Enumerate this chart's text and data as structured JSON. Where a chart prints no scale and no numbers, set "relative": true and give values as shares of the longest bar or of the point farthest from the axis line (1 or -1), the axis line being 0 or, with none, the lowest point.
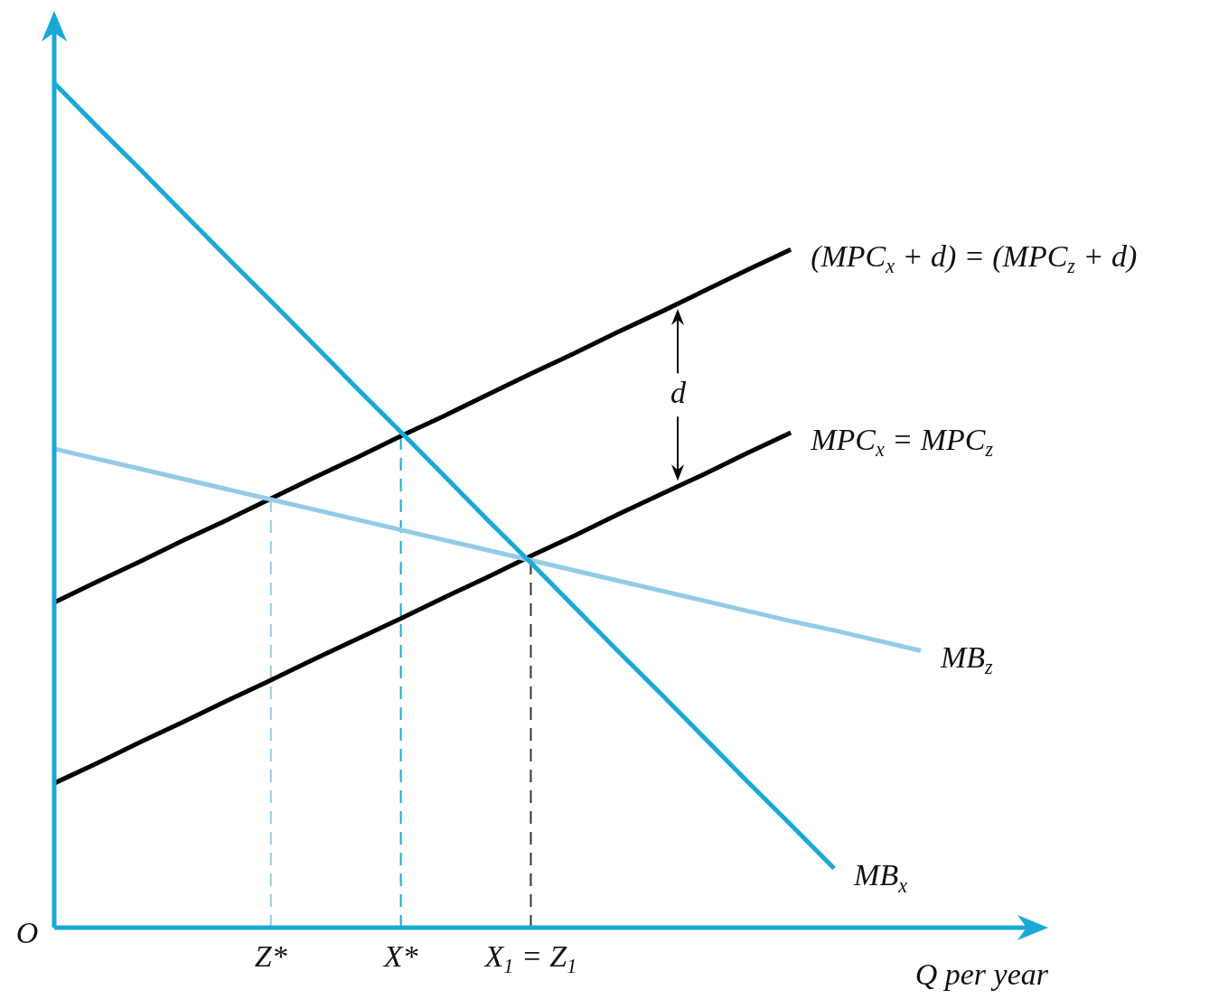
{
  "chart_data": {
    "type": "line",
    "relative": true,
    "xlabel": "Q per year",
    "categories": [
      null,
      null,
      null,
      null,
      null,
      "Z*",
      null,
      null,
      "X*",
      null,
      null,
      "X$_{1}$ = Z$_{1}$",
      null,
      null,
      null,
      null,
      null,
      null,
      null,
      null,
      null
    ],
    "series": [
      {
        "name": "MB$_{x}$",
        "color": "#1aa9d6",
        "values": [
          1,
          0.948,
          0.897,
          0.845,
          0.793,
          0.742,
          0.69,
          0.638,
          0.587,
          0.535,
          0.483,
          0.432,
          0.38,
          0.328,
          0.277,
          0.225,
          0.173,
          0.122,
          0.07,
          null,
          null
        ]
      },
      {
        "name": "MB$_{z}$",
        "color": "#93cbe8",
        "values": [
          0.567,
          0.555,
          0.543,
          0.531,
          0.519,
          0.507,
          0.495,
          0.483,
          0.471,
          0.459,
          0.447,
          0.435,
          0.423,
          0.411,
          0.399,
          0.387,
          0.375,
          0.363,
          0.352,
          0.34,
          0.328
        ]
      },
      {
        "name": "(MPC$_{x}$ + d) = (MPC$_{z}$ + d)",
        "color": "#000000",
        "values": [
          0.385,
          0.41,
          0.434,
          0.459,
          0.483,
          0.508,
          0.533,
          0.557,
          0.582,
          0.606,
          0.631,
          0.656,
          0.68,
          0.705,
          0.729,
          0.754,
          0.779,
          0.803,
          null,
          null,
          null
        ]
      },
      {
        "name": "MPC$_{x}$ = MPC$_{z}$",
        "color": "#000000",
        "values": [
          0.171,
          0.195,
          0.22,
          0.244,
          0.269,
          0.293,
          0.318,
          0.342,
          0.366,
          0.391,
          0.415,
          0.44,
          0.464,
          0.489,
          0.513,
          0.537,
          0.562,
          0.586,
          null,
          null,
          null
        ]
      }
    ],
    "ref_lines": [
      {
        "axis": "x",
        "value": "Z*",
        "color": "#93cbe8",
        "line_style": "dashed"
      },
      {
        "axis": "x",
        "value": "X*",
        "color": "#1aa9d6",
        "line_style": "dashed"
      },
      {
        "axis": "x",
        "value": "X$_{1}$ = Z$_{1}$",
        "color": "#333333",
        "line_style": "dashed"
      }
    ],
    "annotations": [
      "O",
      "d"
    ]
  }
}
